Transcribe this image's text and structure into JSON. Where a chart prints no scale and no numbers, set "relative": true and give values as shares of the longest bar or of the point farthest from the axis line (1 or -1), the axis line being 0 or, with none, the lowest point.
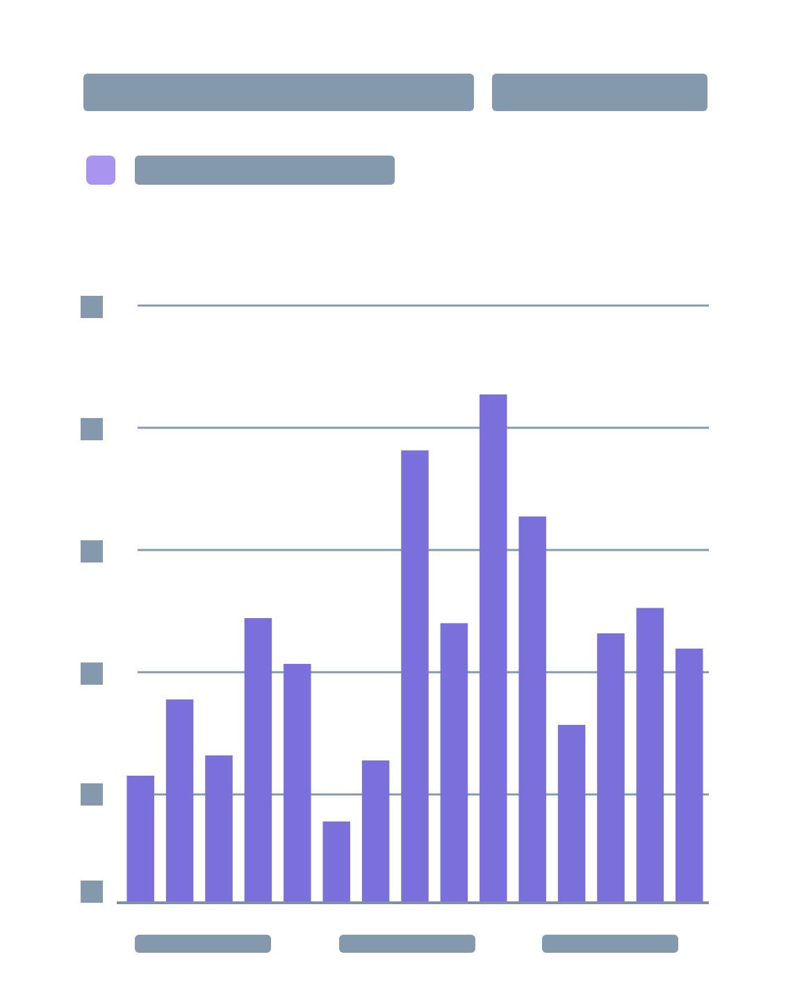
{
  "chart_data": {
    "type": "bar",
    "relative": true,
    "grid": "y",
    "color": "#7b6fdc",
    "categories": [
      null,
      null,
      null,
      null,
      null,
      null,
      null,
      null,
      null,
      null,
      null,
      null,
      null,
      null,
      null
    ],
    "values": [
      0.25,
      0.4,
      0.29,
      0.56,
      0.47,
      0.16,
      0.28,
      0.89,
      0.55,
      1,
      0.76,
      0.35,
      0.53,
      0.58,
      0.5
    ]
  }
}
